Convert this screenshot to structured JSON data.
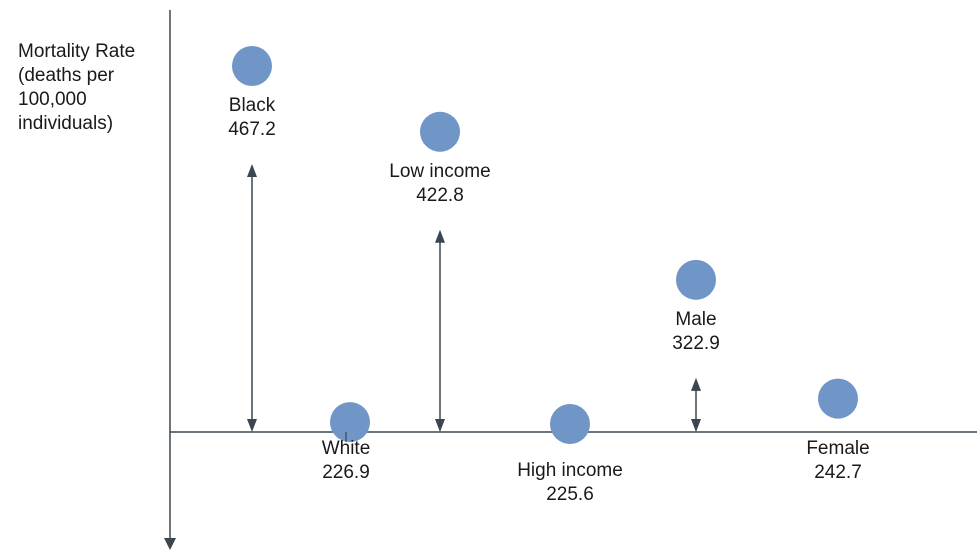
{
  "chart_data": {
    "type": "scatter",
    "ylabel_lines": [
      "Mortality Rate",
      "(deaths per",
      "100,000",
      "individuals)"
    ],
    "points": [
      {
        "label": "Black",
        "value": 467.2
      },
      {
        "label": "White",
        "value": 226.9
      },
      {
        "label": "Low income",
        "value": 422.8
      },
      {
        "label": "High income",
        "value": 225.6
      },
      {
        "label": "Male",
        "value": 322.9
      },
      {
        "label": "Female",
        "value": 242.7
      }
    ],
    "comparisons": [
      {
        "from": "Black",
        "to": "White"
      },
      {
        "from": "Low income",
        "to": "High income"
      },
      {
        "from": "Male",
        "to": "Female"
      }
    ],
    "colors": {
      "point": "#7096c8",
      "axis": "#3c4650",
      "arrow": "#3c4650"
    }
  }
}
